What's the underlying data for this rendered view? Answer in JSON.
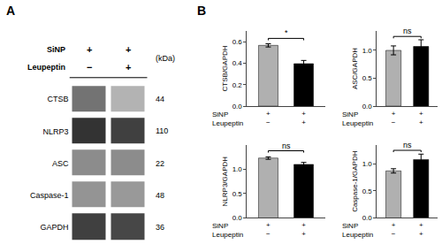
{
  "chart_data": [
    {
      "type": "heatmap",
      "title": "A",
      "categories": [
        "CTSB",
        "NLRP3",
        "ASC",
        "Caspase-1",
        "GAPDH"
      ],
      "cells": [
        [
          0.55,
          0.3
        ],
        [
          0.8,
          0.75
        ],
        [
          0.45,
          0.45
        ],
        [
          0.42,
          0.4
        ],
        [
          0.75,
          0.72
        ]
      ],
      "zlim": [
        0,
        1
      ],
      "right_labels_title": "(kDa)",
      "right_labels": [
        "44",
        "110",
        "22",
        "48",
        "36"
      ],
      "column_header": [
        {
          "name": "SiNP",
          "labels": [
            "+",
            "+"
          ]
        },
        {
          "name": "Leupeptin",
          "labels": [
            "−",
            "+"
          ]
        }
      ],
      "tick_labels": "y",
      "grid": false
    },
    {
      "type": "bar",
      "title": "B",
      "ylabel": "CTSB/GAPDH",
      "category_rows": [
        {
          "name": "SiNP",
          "labels": [
            "+",
            "+"
          ]
        },
        {
          "name": "Leupeptin",
          "labels": [
            "−",
            "+"
          ]
        }
      ],
      "values": [
        0.565,
        0.395
      ],
      "errors": [
        0.015,
        0.03
      ],
      "colors": [
        "#b0b0b0",
        "#000000"
      ],
      "ylim": [
        0,
        0.7
      ],
      "yticks": [
        {
          "value": 0,
          "label": "0.0"
        },
        0.2,
        0.4,
        0.6
      ],
      "significance": {
        "label": "*",
        "y": 0.63
      },
      "grid": false
    },
    {
      "type": "bar",
      "ylabel": "ASC/GAPDH",
      "category_rows": [
        {
          "name": "SiNP",
          "labels": [
            "+",
            "+"
          ]
        },
        {
          "name": "Leupeptin",
          "labels": [
            "−",
            "+"
          ]
        }
      ],
      "values": [
        1.0,
        1.07
      ],
      "errors": [
        0.08,
        0.12
      ],
      "colors": [
        "#b0b0b0",
        "#000000"
      ],
      "ylim": [
        0,
        1.35
      ],
      "yticks": [
        {
          "value": 0,
          "label": "0.0"
        },
        0.5,
        {
          "value": 1,
          "label": "1.0"
        }
      ],
      "significance": {
        "label": "ns",
        "y": 1.25
      },
      "grid": false
    },
    {
      "type": "bar",
      "ylabel": "NLRP3/GAPDH",
      "category_rows": [
        {
          "name": "SiNP",
          "labels": [
            "+",
            "+"
          ]
        },
        {
          "name": "Leupeptin",
          "labels": [
            "−",
            "+"
          ]
        }
      ],
      "values": [
        1.23,
        1.1
      ],
      "errors": [
        0.025,
        0.04
      ],
      "colors": [
        "#b0b0b0",
        "#000000"
      ],
      "ylim": [
        0,
        1.5
      ],
      "yticks": [
        {
          "value": 0,
          "label": "0.0"
        },
        0.5,
        {
          "value": 1,
          "label": "1.0"
        }
      ],
      "significance": {
        "label": "ns",
        "y": 1.38
      },
      "grid": false
    },
    {
      "type": "bar",
      "ylabel": "Caspase-1/GAPDH",
      "category_rows": [
        {
          "name": "SiNP",
          "labels": [
            "+",
            "+"
          ]
        },
        {
          "name": "Leupeptin",
          "labels": [
            "−",
            "+"
          ]
        }
      ],
      "values": [
        0.87,
        1.08
      ],
      "errors": [
        0.04,
        0.1
      ],
      "colors": [
        "#b0b0b0",
        "#000000"
      ],
      "ylim": [
        0,
        1.35
      ],
      "yticks": [
        {
          "value": 0,
          "label": "0.0"
        },
        0.5,
        {
          "value": 1,
          "label": "1.0"
        }
      ],
      "significance": {
        "label": "ns",
        "y": 1.25
      },
      "grid": false
    }
  ]
}
